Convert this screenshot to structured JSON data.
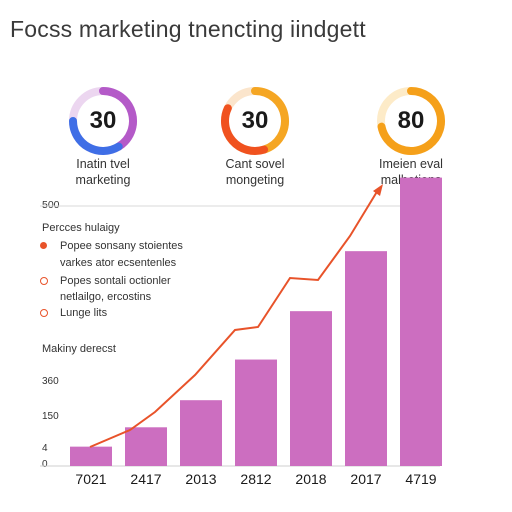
{
  "title": "Focss marketing tnencting iindgett",
  "donuts": [
    {
      "value": "30",
      "fraction": 0.75,
      "colors": [
        "#b45ac8",
        "#3f6ee6"
      ],
      "label_lines": [
        "Inatin tvel",
        "marketing"
      ]
    },
    {
      "value": "30",
      "fraction": 0.82,
      "colors": [
        "#f5a623",
        "#f0521f"
      ],
      "label_lines": [
        "Cant sovel",
        "mongeting"
      ]
    },
    {
      "value": "80",
      "fraction": 0.72,
      "colors": [
        "#f5a01a",
        "#f5a01a"
      ],
      "label_lines": [
        "Imeien eval",
        "malhetions"
      ]
    }
  ],
  "chart_top_label": "500",
  "legend": {
    "title": "Percces hulaigy",
    "items": [
      {
        "text": "Popee sonsany stoientes",
        "marker": "filled",
        "color": "#e8532a"
      },
      {
        "text": "varkes ator ecsentenles",
        "marker": "none",
        "color": "#e8532a"
      },
      {
        "text": "Popes sontali octionler",
        "marker": "hollow",
        "color": "#e8532a"
      },
      {
        "text": "netlailgo, ercostins",
        "marker": "none",
        "color": "#e8532a"
      },
      {
        "text": "Lunge lits",
        "marker": "hollow",
        "color": "#e8532a"
      }
    ]
  },
  "section_label": "Makiny derecst",
  "y_ticks": [
    "360",
    "150",
    "4",
    "0"
  ],
  "chart_data": {
    "type": "bar",
    "categories": [
      "7021",
      "2417",
      "2013",
      "2812",
      "2018",
      "2017",
      "4719"
    ],
    "values": [
      20,
      40,
      68,
      110,
      160,
      222,
      298
    ],
    "line_values": [
      18,
      52,
      100,
      172,
      236,
      330,
      440
    ],
    "ylim": [
      0,
      310
    ],
    "title": "",
    "xlabel": "",
    "ylabel": "",
    "bar_color": "#cc6ec0",
    "line_color": "#e8532a"
  }
}
